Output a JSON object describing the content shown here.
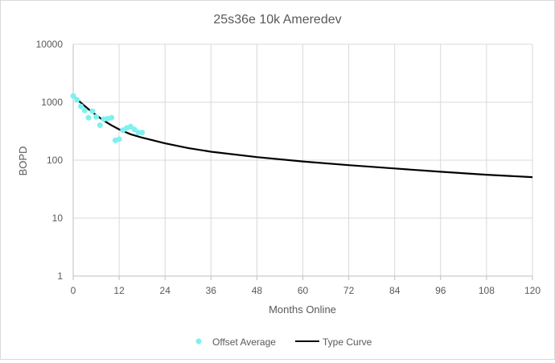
{
  "chart_data": {
    "type": "scatter",
    "title": "25s36e 10k  Ameredev",
    "xlabel": "Months Online",
    "ylabel": "BOPD",
    "xlim": [
      0,
      120
    ],
    "ylim": [
      1,
      10000
    ],
    "yscale": "log",
    "x_ticks": [
      0,
      12,
      24,
      36,
      48,
      60,
      72,
      84,
      96,
      108,
      120
    ],
    "y_ticks": [
      1,
      10,
      100,
      1000,
      10000
    ],
    "grid": true,
    "legend_position": "bottom",
    "series": [
      {
        "name": "Offset Average",
        "kind": "scatter",
        "color": "#7ff0f0",
        "x": [
          0,
          1,
          2,
          3,
          4,
          5,
          6,
          7,
          8,
          9,
          10,
          11,
          12,
          13,
          14,
          15,
          16,
          17,
          18
        ],
        "y": [
          1280,
          1100,
          850,
          720,
          540,
          700,
          560,
          400,
          510,
          520,
          540,
          220,
          230,
          330,
          360,
          380,
          340,
          300,
          300
        ]
      },
      {
        "name": "Type Curve",
        "kind": "line",
        "color": "#000000",
        "x": [
          0,
          1,
          2,
          3,
          4,
          6,
          8,
          10,
          12,
          15,
          18,
          24,
          30,
          36,
          48,
          60,
          72,
          84,
          96,
          108,
          120
        ],
        "y": [
          1300,
          1120,
          980,
          860,
          760,
          600,
          480,
          400,
          340,
          280,
          245,
          195,
          162,
          140,
          113,
          95,
          82,
          72,
          63,
          56,
          51
        ]
      }
    ]
  }
}
